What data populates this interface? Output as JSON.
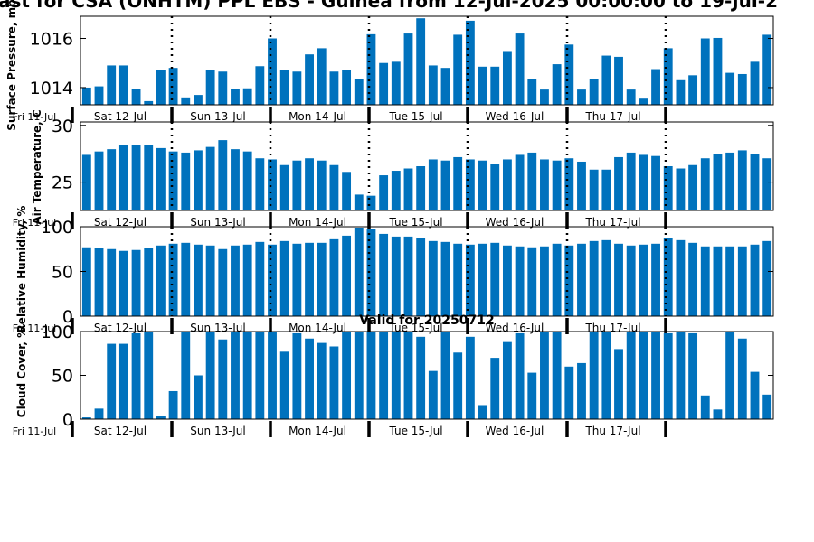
{
  "title": "ast for CSA (ONHTM) PPL EBS  - Guinea from 12-Jul-2025 00:00:00 to 19-Jul-2",
  "colors": {
    "bar": "#0072BD",
    "axis": "#000000",
    "divider": "#000000"
  },
  "chart_data": [
    {
      "type": "bar",
      "ylabel": "Surface Pressure, mb",
      "ylim": [
        1013.3,
        1016.9
      ],
      "yticks": [
        1014,
        1016
      ],
      "yticklabels": [
        "1014",
        "1016"
      ],
      "xticklabels": [
        "Fri 11-Jul",
        "Sat 12-Jul",
        "Sun 13-Jul",
        "Mon 14-Jul",
        "Tue 15-Jul",
        "Wed 16-Jul",
        "Thu 17-Jul"
      ],
      "day_dividers_dotted": true,
      "values": [
        1014.0,
        1014.05,
        1014.9,
        1014.9,
        1013.95,
        1013.45,
        1014.7,
        1014.8,
        1013.6,
        1013.7,
        1014.7,
        1014.65,
        1013.95,
        1013.97,
        1014.87,
        1016.0,
        1014.7,
        1014.65,
        1015.35,
        1015.6,
        1014.65,
        1014.7,
        1014.35,
        1016.17,
        1015.0,
        1015.05,
        1016.2,
        1016.82,
        1014.9,
        1014.8,
        1016.15,
        1016.72,
        1014.85,
        1014.85,
        1015.45,
        1016.2,
        1014.35,
        1013.92,
        1014.95,
        1015.75,
        1013.92,
        1014.35,
        1015.3,
        1015.25,
        1013.92,
        1013.55,
        1014.75,
        1015.6,
        1014.3,
        1014.5,
        1016.0,
        1016.02,
        1014.6,
        1014.55,
        1015.05,
        1016.15
      ]
    },
    {
      "type": "bar",
      "ylabel": "Air Temperature, C",
      "ylim": [
        22.5,
        30.3
      ],
      "yticks": [
        25,
        30
      ],
      "yticklabels": [
        "25",
        "30"
      ],
      "xticklabels": [
        "Fri 11-Jul",
        "Sat 12-Jul",
        "Sun 13-Jul",
        "Mon 14-Jul",
        "Tue 15-Jul",
        "Wed 16-Jul",
        "Thu 17-Jul"
      ],
      "day_dividers_dotted": true,
      "values": [
        27.4,
        27.7,
        27.9,
        28.3,
        28.3,
        28.3,
        28.0,
        27.7,
        27.6,
        27.8,
        28.1,
        28.7,
        27.9,
        27.7,
        27.1,
        27.0,
        26.5,
        26.9,
        27.1,
        26.9,
        26.5,
        25.9,
        23.9,
        23.8,
        25.6,
        26.0,
        26.2,
        26.4,
        27.0,
        26.9,
        27.2,
        27.0,
        26.9,
        26.6,
        27.0,
        27.4,
        27.6,
        27.0,
        26.9,
        27.1,
        26.8,
        26.1,
        26.1,
        27.2,
        27.6,
        27.4,
        27.3,
        26.4,
        26.2,
        26.5,
        27.1,
        27.5,
        27.6,
        27.8,
        27.5,
        27.1
      ]
    },
    {
      "type": "bar",
      "ylabel": "Relative Humidity, %",
      "ylim": [
        0,
        100
      ],
      "yticks": [
        0,
        50,
        100
      ],
      "yticklabels": [
        "0",
        "50",
        "100"
      ],
      "xticklabels": [
        "Fri 11-Jul",
        "Sat 12-Jul",
        "Sun 13-Jul",
        "Mon 14-Jul",
        "Tue 15-Jul",
        "Wed 16-Jul",
        "Thu 17-Jul"
      ],
      "day_dividers_dotted": true,
      "values": [
        77,
        76,
        75,
        73,
        74,
        76,
        79,
        81,
        82,
        80,
        79,
        75,
        79,
        80,
        83,
        80,
        84,
        81,
        82,
        82,
        86,
        90,
        99,
        97,
        92,
        89,
        89,
        87,
        84,
        83,
        81,
        80,
        81,
        82,
        79,
        78,
        77,
        78,
        81,
        79,
        81,
        84,
        85,
        81,
        79,
        80,
        81,
        87,
        85,
        82,
        78,
        78,
        78,
        78,
        80,
        84
      ]
    },
    {
      "type": "bar",
      "title": "Valid for 20250712",
      "ylabel": "Cloud Cover, %",
      "ylim": [
        0,
        100
      ],
      "yticks": [
        0,
        50,
        100
      ],
      "yticklabels": [
        "0",
        "50",
        "100"
      ],
      "xticklabels": [
        "Fri 11-Jul",
        "Sat 12-Jul",
        "Sun 13-Jul",
        "Mon 14-Jul",
        "Tue 15-Jul",
        "Wed 16-Jul",
        "Thu 17-Jul"
      ],
      "day_dividers_dotted": false,
      "values": [
        2,
        12,
        86,
        86,
        98,
        100,
        4,
        32,
        99,
        50,
        100,
        91,
        100,
        100,
        100,
        100,
        77,
        98,
        92,
        87,
        83,
        100,
        100,
        100,
        100,
        100,
        100,
        94,
        55,
        100,
        76,
        94,
        16,
        70,
        88,
        98,
        53,
        100,
        100,
        60,
        64,
        100,
        100,
        80,
        100,
        100,
        100,
        98,
        100,
        98,
        27,
        11,
        100,
        92,
        54,
        28
      ]
    }
  ]
}
